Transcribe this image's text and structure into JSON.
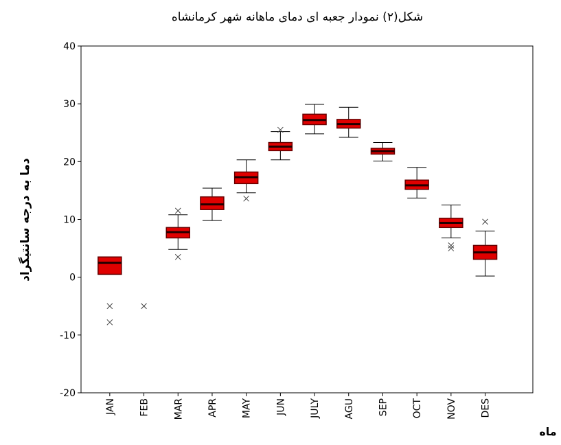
{
  "chart_data": {
    "type": "box",
    "title": "شکل(۲) نمودار جعبه ای دمای ماهانه شهر کرمانشاه",
    "y_label": "دما به درجه سانتیگراد",
    "x_label": "ماه",
    "categories": [
      "JAN",
      "FEB",
      "MAR",
      "APR",
      "MAY",
      "JUN",
      "JULY",
      "AGU",
      "SEP",
      "OCT",
      "NOV",
      "DES"
    ],
    "color": "#e00000",
    "boxes": [
      {
        "min": 0.5,
        "q1": 0.5,
        "median": 2.5,
        "q3": 3.5,
        "max": 3.5,
        "outliers": [
          -5,
          -7.8
        ]
      },
      {
        "min": null,
        "q1": null,
        "median": null,
        "q3": null,
        "max": null,
        "outliers": [
          -5
        ]
      },
      {
        "min": 4.8,
        "q1": 6.8,
        "median": 7.8,
        "q3": 8.6,
        "max": 10.8,
        "outliers": [
          11.5,
          3.5
        ]
      },
      {
        "min": 9.8,
        "q1": 11.7,
        "median": 12.6,
        "q3": 13.9,
        "max": 15.4,
        "outliers": []
      },
      {
        "min": 14.6,
        "q1": 16.2,
        "median": 17.3,
        "q3": 18.2,
        "max": 20.3,
        "outliers": [
          13.6
        ]
      },
      {
        "min": 20.3,
        "q1": 21.9,
        "median": 22.6,
        "q3": 23.3,
        "max": 25.2,
        "outliers": [
          25.5
        ]
      },
      {
        "min": 24.8,
        "q1": 26.4,
        "median": 27.2,
        "q3": 28.2,
        "max": 29.9,
        "outliers": []
      },
      {
        "min": 24.2,
        "q1": 25.8,
        "median": 26.5,
        "q3": 27.3,
        "max": 29.4,
        "outliers": []
      },
      {
        "min": 20.1,
        "q1": 21.3,
        "median": 21.8,
        "q3": 22.3,
        "max": 23.3,
        "outliers": []
      },
      {
        "min": 13.7,
        "q1": 15.2,
        "median": 15.9,
        "q3": 16.8,
        "max": 19.0,
        "outliers": []
      },
      {
        "min": 6.8,
        "q1": 8.6,
        "median": 9.4,
        "q3": 10.2,
        "max": 12.5,
        "outliers": [
          5.5,
          5.0
        ]
      },
      {
        "min": 0.2,
        "q1": 3.1,
        "median": 4.3,
        "q3": 5.5,
        "max": 8.0,
        "outliers": [
          9.6
        ]
      }
    ],
    "ylim": [
      -20,
      40
    ],
    "yticks": [
      -20,
      -10,
      0,
      10,
      20,
      30,
      40
    ]
  }
}
